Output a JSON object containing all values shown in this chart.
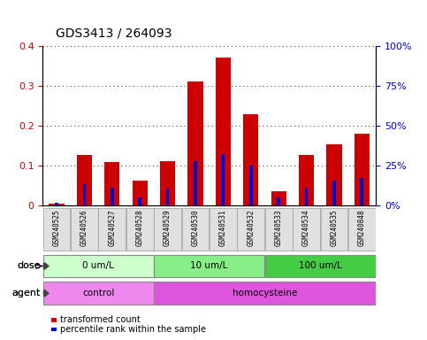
{
  "title": "GDS3413 / 264093",
  "samples": [
    "GSM240525",
    "GSM240526",
    "GSM240527",
    "GSM240528",
    "GSM240529",
    "GSM240530",
    "GSM240531",
    "GSM240532",
    "GSM240533",
    "GSM240534",
    "GSM240535",
    "GSM240848"
  ],
  "transformed_count": [
    0.005,
    0.127,
    0.11,
    0.063,
    0.111,
    0.31,
    0.37,
    0.228,
    0.037,
    0.127,
    0.153,
    0.18
  ],
  "percentile_rank_pct": [
    2.0,
    13.5,
    11.0,
    5.0,
    10.5,
    28.0,
    32.5,
    25.0,
    5.0,
    11.0,
    15.5,
    17.5
  ],
  "ylim_left": [
    0,
    0.4
  ],
  "ylim_right": [
    0,
    100
  ],
  "yticks_left": [
    0.0,
    0.1,
    0.2,
    0.3,
    0.4
  ],
  "ytick_labels_left": [
    "0",
    "0.1",
    "0.2",
    "0.3",
    "0.4"
  ],
  "yticks_right": [
    0,
    25,
    50,
    75,
    100
  ],
  "ytick_labels_right": [
    "0%",
    "25%",
    "50%",
    "75%",
    "100%"
  ],
  "bar_color_red": "#cc0000",
  "bar_color_blue": "#0000cc",
  "dose_groups": [
    {
      "label": "0 um/L",
      "start": 0,
      "end": 3,
      "color": "#ccffcc"
    },
    {
      "label": "10 um/L",
      "start": 4,
      "end": 7,
      "color": "#88ee88"
    },
    {
      "label": "100 um/L",
      "start": 8,
      "end": 11,
      "color": "#44cc44"
    }
  ],
  "agent_groups": [
    {
      "label": "control",
      "start": 0,
      "end": 3,
      "color": "#ee88ee"
    },
    {
      "label": "homocysteine",
      "start": 4,
      "end": 11,
      "color": "#dd55dd"
    }
  ],
  "dose_label": "dose",
  "agent_label": "agent",
  "legend_red": "transformed count",
  "legend_blue": "percentile rank within the sample",
  "tick_color_left": "#cc0000",
  "tick_color_right": "#0000cc",
  "title_fontsize": 10,
  "red_bar_width": 0.55,
  "blue_bar_width": 0.12,
  "sample_box_color": "#e0e0e0",
  "sample_box_edge": "#999999"
}
